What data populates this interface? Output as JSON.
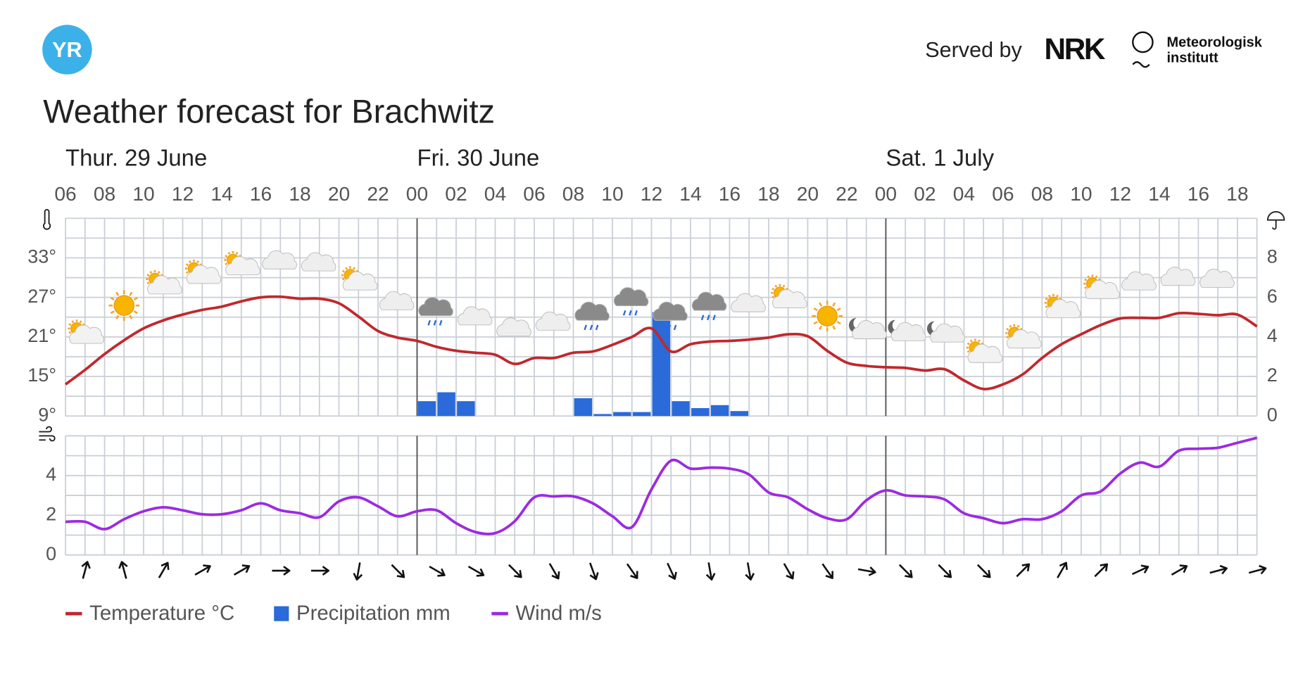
{
  "header": {
    "logo": "YR",
    "served_by": "Served by",
    "partner_1": "NRK",
    "partner_2": [
      "Meteorologisk",
      "institutt"
    ]
  },
  "chart_data": [
    {
      "type": "line",
      "title": "Weather forecast for Brachwitz",
      "days": [
        {
          "value": 6,
          "label": "Thur. 29 June"
        },
        {
          "value": 24,
          "label": "Fri. 30 June"
        },
        {
          "value": 48,
          "label": "Sat. 1 July"
        }
      ],
      "x": [
        6,
        7,
        8,
        9,
        10,
        11,
        12,
        13,
        14,
        15,
        16,
        17,
        18,
        19,
        20,
        21,
        22,
        23,
        24,
        25,
        26,
        27,
        28,
        29,
        30,
        31,
        32,
        33,
        34,
        35,
        36,
        37,
        38,
        39,
        40,
        41,
        42,
        43,
        44,
        45,
        46,
        47,
        48,
        49,
        50,
        51,
        52,
        53,
        54,
        55,
        56,
        57,
        58,
        59,
        60,
        61,
        62,
        63,
        64,
        65,
        66,
        67
      ],
      "xlim": [
        6,
        67
      ],
      "xticks": [
        {
          "value": 6,
          "label": "06"
        },
        {
          "value": 8,
          "label": "08"
        },
        {
          "value": 10,
          "label": "10"
        },
        {
          "value": 12,
          "label": "12"
        },
        {
          "value": 14,
          "label": "14"
        },
        {
          "value": 16,
          "label": "16"
        },
        {
          "value": 18,
          "label": "18"
        },
        {
          "value": 20,
          "label": "20"
        },
        {
          "value": 22,
          "label": "22"
        },
        {
          "value": 24,
          "label": "00"
        },
        {
          "value": 26,
          "label": "02"
        },
        {
          "value": 28,
          "label": "04"
        },
        {
          "value": 30,
          "label": "06"
        },
        {
          "value": 32,
          "label": "08"
        },
        {
          "value": 34,
          "label": "10"
        },
        {
          "value": 36,
          "label": "12"
        },
        {
          "value": 38,
          "label": "14"
        },
        {
          "value": 40,
          "label": "16"
        },
        {
          "value": 42,
          "label": "18"
        },
        {
          "value": 44,
          "label": "20"
        },
        {
          "value": 46,
          "label": "22"
        },
        {
          "value": 48,
          "label": "00"
        },
        {
          "value": 50,
          "label": "02"
        },
        {
          "value": 52,
          "label": "04"
        },
        {
          "value": 54,
          "label": "06"
        },
        {
          "value": 56,
          "label": "08"
        },
        {
          "value": 58,
          "label": "10"
        },
        {
          "value": 60,
          "label": "12"
        },
        {
          "value": 62,
          "label": "14"
        },
        {
          "value": 64,
          "label": "16"
        },
        {
          "value": 66,
          "label": "18"
        }
      ],
      "ylim": [
        9,
        39
      ],
      "yticks": [
        {
          "value": 9,
          "label": "9°"
        },
        {
          "value": 15,
          "label": "15°"
        },
        {
          "value": 21,
          "label": "21°"
        },
        {
          "value": 27,
          "label": "27°"
        },
        {
          "value": 33,
          "label": "33°"
        }
      ],
      "ygrid": [
        9,
        12,
        15,
        18,
        21,
        24,
        27,
        30,
        33,
        36,
        39
      ],
      "y2lim": [
        0,
        10
      ],
      "y2ticks": [
        0,
        2,
        4,
        6,
        8
      ],
      "series": [
        {
          "name": "Temperature °C",
          "color": "#c0282d",
          "values": [
            13.8,
            16,
            18.4,
            20.5,
            22.3,
            23.5,
            24.4,
            25.1,
            25.6,
            26.4,
            27,
            27.1,
            26.8,
            26.8,
            26.1,
            24.1,
            21.9,
            20.9,
            20.4,
            19.5,
            18.9,
            18.6,
            18.3,
            16.9,
            17.8,
            17.8,
            18.6,
            18.8,
            19.8,
            21,
            22.3,
            18.8,
            19.9,
            20.3,
            20.4,
            20.6,
            20.9,
            21.4,
            21.1,
            18.9,
            17.1,
            16.6,
            16.4,
            16.3,
            15.9,
            16.1,
            14.4,
            13.1,
            13.8,
            15.3,
            17.8,
            19.9,
            21.4,
            22.8,
            23.8,
            23.9,
            23.9,
            24.6,
            24.5,
            24.3,
            24.4,
            22.6
          ]
        },
        {
          "name": "Precipitation mm",
          "color": "#2a6ad9",
          "axis": "y2",
          "type": "bar",
          "values": [
            null,
            null,
            null,
            null,
            null,
            null,
            null,
            null,
            null,
            null,
            null,
            null,
            null,
            null,
            null,
            null,
            null,
            null,
            0.75,
            1.2,
            0.75,
            null,
            null,
            null,
            null,
            null,
            0.9,
            0.1,
            0.2,
            0.2,
            5.25,
            0.75,
            0.4,
            0.55,
            0.25,
            null,
            null,
            null,
            null,
            null,
            null,
            null,
            null,
            null,
            null,
            null,
            null,
            null,
            null,
            null,
            null,
            null,
            null,
            null,
            null,
            null,
            null,
            null,
            null,
            null,
            null,
            null
          ]
        }
      ]
    },
    {
      "type": "line",
      "ylim": [
        0,
        6
      ],
      "yticks": [
        0,
        2,
        4
      ],
      "ygrid": [
        0,
        1,
        2,
        3,
        4,
        5,
        6
      ],
      "series": [
        {
          "name": "Wind m/s",
          "color": "#9b2be0",
          "values": [
            1.67,
            1.67,
            1.3,
            1.8,
            2.2,
            2.4,
            2.25,
            2.05,
            2.05,
            2.25,
            2.6,
            2.25,
            2.1,
            1.9,
            2.7,
            2.9,
            2.45,
            1.95,
            2.2,
            2.25,
            1.6,
            1.15,
            1.1,
            1.7,
            2.9,
            2.95,
            2.95,
            2.6,
            1.95,
            1.4,
            3.3,
            4.75,
            4.35,
            4.4,
            4.35,
            4.05,
            3.15,
            2.9,
            2.3,
            1.85,
            1.8,
            2.75,
            3.25,
            3,
            2.95,
            2.8,
            2.1,
            1.85,
            1.6,
            1.8,
            1.8,
            2.2,
            3,
            3.2,
            4.1,
            4.65,
            4.45,
            5.25,
            5.35,
            5.4,
            5.65,
            5.9
          ]
        }
      ],
      "wind_direction": {
        "x": [
          7,
          9,
          11,
          13,
          15,
          17,
          19,
          21,
          23,
          25,
          27,
          29,
          31,
          33,
          35,
          37,
          39,
          41,
          43,
          45,
          47,
          49,
          51,
          53,
          55,
          57,
          59,
          61,
          63,
          65,
          67
        ],
        "values": [
          15,
          345,
          30,
          60,
          60,
          90,
          90,
          190,
          135,
          120,
          120,
          135,
          150,
          160,
          145,
          155,
          170,
          170,
          150,
          145,
          100,
          135,
          135,
          135,
          45,
          30,
          45,
          65,
          60,
          75,
          75
        ]
      }
    }
  ]
}
